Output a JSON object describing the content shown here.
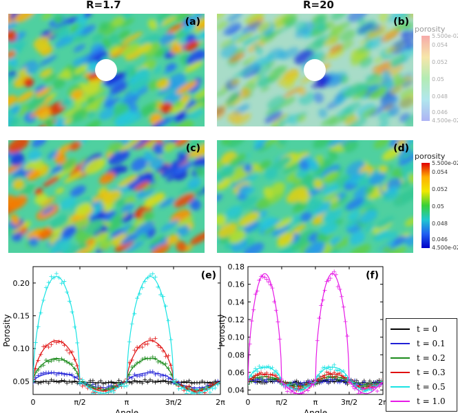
{
  "columns": {
    "left_title": "R=1.7",
    "right_title": "R=20"
  },
  "panels": {
    "a": "(a)",
    "b": "(b)",
    "c": "(c)",
    "d": "(d)",
    "e": "(e)",
    "f": "(f)"
  },
  "colorbar": {
    "title": "porosity",
    "ticks": [
      "5.500e-02",
      "0.054",
      "0.052",
      "0.05",
      "0.048",
      "0.046",
      "4.500e-02"
    ]
  },
  "legend": {
    "entries": [
      {
        "label": "t = 0",
        "color": "#000000"
      },
      {
        "label": "t = 0.1",
        "color": "#1f1fd6"
      },
      {
        "label": "t = 0.2",
        "color": "#1a8a1a"
      },
      {
        "label": "t = 0.3",
        "color": "#e01010"
      },
      {
        "label": "t = 0.5",
        "color": "#19e3e3"
      },
      {
        "label": "t = 1.0",
        "color": "#e619e6"
      }
    ]
  },
  "chart_data": [
    {
      "type": "line",
      "panel": "(e)",
      "xlabel": "Angle",
      "ylabel": "Porosity",
      "xlim": [
        0,
        6.2832
      ],
      "ylim": [
        0.03,
        0.225
      ],
      "xticks": [
        "0",
        "π/2",
        "π",
        "3π/2",
        "2π"
      ],
      "yticks": [
        "0.05",
        "0.10",
        "0.15",
        "0.20"
      ],
      "series": [
        {
          "name": "t = 0",
          "peak": 0.05,
          "min": 0.048
        },
        {
          "name": "t = 0.1",
          "peak": 0.063,
          "min": 0.04
        },
        {
          "name": "t = 0.2",
          "peak": 0.085,
          "min": 0.037
        },
        {
          "name": "t = 0.3",
          "peak": 0.112,
          "min": 0.035
        },
        {
          "name": "t = 0.5",
          "peak": 0.21,
          "min": 0.032
        }
      ]
    },
    {
      "type": "line",
      "panel": "(f)",
      "xlabel": "Angle",
      "ylabel": "Porosity",
      "xlim": [
        0,
        6.2832
      ],
      "ylim": [
        0.035,
        0.18
      ],
      "xticks": [
        "0",
        "π/2",
        "π",
        "3π/2",
        "2π"
      ],
      "yticks": [
        "0.04",
        "0.06",
        "0.08",
        "0.10",
        "0.12",
        "0.14",
        "0.16",
        "0.18"
      ],
      "series": [
        {
          "name": "t = 0",
          "peak": 0.05,
          "min": 0.048
        },
        {
          "name": "t = 0.1",
          "peak": 0.052,
          "min": 0.046
        },
        {
          "name": "t = 0.2",
          "peak": 0.055,
          "min": 0.044
        },
        {
          "name": "t = 0.3",
          "peak": 0.058,
          "min": 0.042
        },
        {
          "name": "t = 0.5",
          "peak": 0.066,
          "min": 0.04
        },
        {
          "name": "t = 1.0",
          "peak": 0.172,
          "min": 0.036
        }
      ]
    }
  ]
}
